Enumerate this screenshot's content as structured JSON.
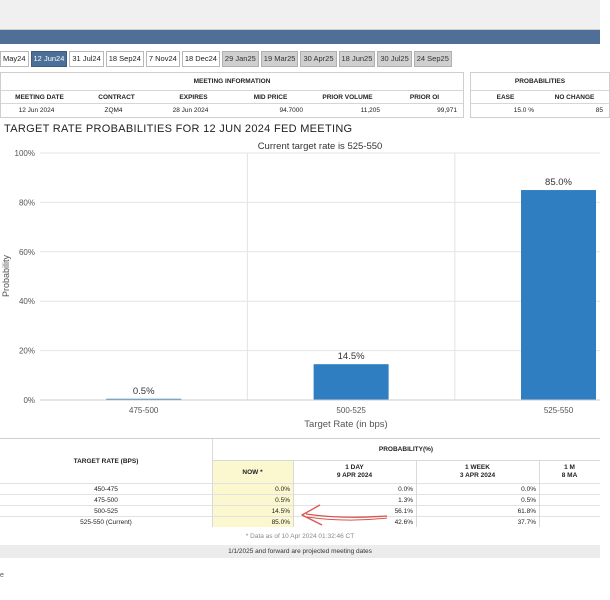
{
  "tabs": [
    {
      "label": "May24",
      "state": "normal"
    },
    {
      "label": "12 Jun24",
      "state": "active"
    },
    {
      "label": "31 Jul24",
      "state": "normal"
    },
    {
      "label": "18 Sep24",
      "state": "normal"
    },
    {
      "label": "7 Nov24",
      "state": "normal"
    },
    {
      "label": "18 Dec24",
      "state": "normal"
    },
    {
      "label": "29 Jan25",
      "state": "grey"
    },
    {
      "label": "19 Mar25",
      "state": "grey"
    },
    {
      "label": "30 Apr25",
      "state": "grey"
    },
    {
      "label": "18 Jun25",
      "state": "grey"
    },
    {
      "label": "30 Jul25",
      "state": "grey"
    },
    {
      "label": "24 Sep25",
      "state": "grey"
    }
  ],
  "meeting_info": {
    "title": "MEETING INFORMATION",
    "headers": [
      "MEETING DATE",
      "CONTRACT",
      "EXPIRES",
      "MID PRICE",
      "PRIOR VOLUME",
      "PRIOR OI"
    ],
    "values": [
      "12 Jun 2024",
      "ZQM4",
      "28 Jun 2024",
      "94.7000",
      "11,205",
      "99,971"
    ]
  },
  "probabilities_panel": {
    "title": "PROBABILITIES",
    "headers": [
      "EASE",
      "NO CHANGE"
    ],
    "values": [
      "15.0 %",
      "85"
    ]
  },
  "chart_title": "TARGET RATE PROBABILITIES FOR 12 JUN 2024 FED MEETING",
  "chart_data": {
    "type": "bar",
    "title": "TARGET RATE PROBABILITIES FOR 12 JUN 2024 FED MEETING",
    "subtitle": "Current target rate is 525-550",
    "categories": [
      "475-500",
      "500-525",
      "525-550"
    ],
    "values": [
      0.5,
      14.5,
      85.0
    ],
    "value_labels": [
      "0.5%",
      "14.5%",
      "85.0%"
    ],
    "xlabel": "Target Rate (in bps)",
    "ylabel": "Probability",
    "ylim": [
      0,
      100
    ],
    "yticks": [
      "0%",
      "20%",
      "40%",
      "60%",
      "80%",
      "100%"
    ],
    "grid": true,
    "bar_color": "#2f7ec1"
  },
  "prob_table": {
    "header_target": "TARGET RATE (BPS)",
    "header_prob": "PROBABILITY(%)",
    "col_now": "NOW *",
    "col_1day": "1 DAY",
    "col_1day_date": "9 APR 2024",
    "col_1week": "1 WEEK",
    "col_1week_date": "3 APR 2024",
    "col_1month": "1 M",
    "col_1month_date": "8 MA",
    "rows": [
      {
        "rate": "450-475",
        "now": "0.0%",
        "day": "0.0%",
        "week": "0.0%"
      },
      {
        "rate": "475-500",
        "now": "0.5%",
        "day": "1.3%",
        "week": "0.5%"
      },
      {
        "rate": "500-525",
        "now": "14.5%",
        "day": "56.1%",
        "week": "61.8%"
      },
      {
        "rate": "525-550 (Current)",
        "now": "85.0%",
        "day": "42.6%",
        "week": "37.7%"
      }
    ],
    "note": "* Data as of 10 Apr 2024 01:32:46 CT",
    "footer": "1/1/2025 and forward are projected meeting dates"
  },
  "bottom_text": "e",
  "annotation_color": "#d9534f"
}
